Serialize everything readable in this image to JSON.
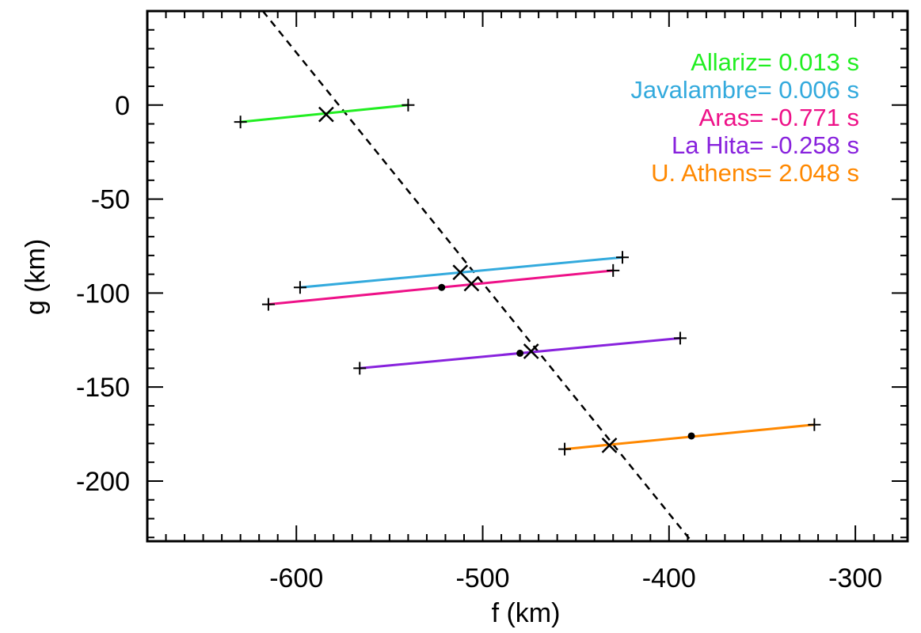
{
  "chart_data": {
    "type": "line",
    "xlabel": "f (km)",
    "ylabel": "g (km)",
    "xlim": [
      -680,
      -272
    ],
    "ylim": [
      -232,
      50
    ],
    "xticks": [
      -600,
      -500,
      -400,
      -300
    ],
    "xtick_labels": [
      "-600",
      "-500",
      "-400",
      "-300"
    ],
    "yticks": [
      0,
      -50,
      -100,
      -150,
      -200
    ],
    "ytick_labels": [
      "0",
      "-50",
      "-100",
      "-150",
      "-200"
    ],
    "xminor_step": 10,
    "yminor_step": 10,
    "fit_line": {
      "style": "dashed",
      "color": "#000000",
      "x": [
        -618,
        -388
      ],
      "y": [
        50,
        -232
      ]
    },
    "series": [
      {
        "name": "Allariz",
        "time_label": "Allariz=  0.013 s",
        "color": "#22ee22",
        "chord": {
          "x": [
            -630,
            -540
          ],
          "y": [
            -9,
            0
          ]
        },
        "cross": [
          -584,
          -5
        ]
      },
      {
        "name": "Javalambre",
        "time_label": "Javalambre=  0.006 s",
        "color": "#33aadd",
        "chord": {
          "x": [
            -598,
            -425
          ],
          "y": [
            -97,
            -81
          ]
        },
        "cross": [
          -512,
          -89
        ]
      },
      {
        "name": "Aras",
        "time_label": "Aras= -0.771 s",
        "color": "#ee1188",
        "chord": {
          "x": [
            -615,
            -430
          ],
          "y": [
            -106,
            -88
          ]
        },
        "dot": [
          -522,
          -97
        ],
        "cross": [
          -506,
          -95
        ]
      },
      {
        "name": "La Hita",
        "time_label": "La Hita=  -0.258 s",
        "color": "#8822dd",
        "chord": {
          "x": [
            -566,
            -394
          ],
          "y": [
            -140,
            -124
          ]
        },
        "dot": [
          -480,
          -132
        ],
        "cross": [
          -474,
          -131
        ]
      },
      {
        "name": "U. Athens",
        "time_label": "U. Athens=   2.048 s",
        "color": "#ff8800",
        "chord": {
          "x": [
            -456,
            -322
          ],
          "y": [
            -183,
            -170
          ]
        },
        "dot": [
          -388,
          -176
        ],
        "cross": [
          -432,
          -181
        ]
      }
    ]
  }
}
